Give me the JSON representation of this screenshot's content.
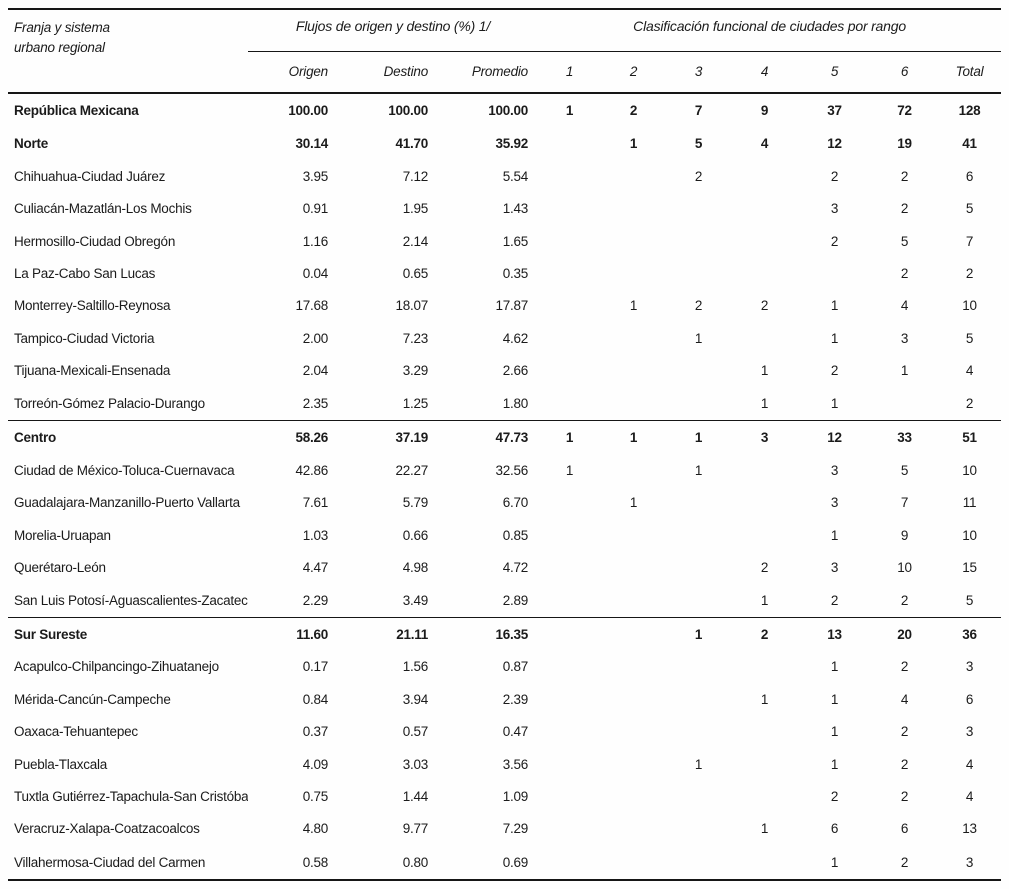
{
  "table": {
    "col1_header_line1": "Franja y sistema",
    "col1_header_line2": "urbano regional",
    "group1_header": "Flujos de origen y destino (%) 1/",
    "group2_header": "Clasificación funcional de ciudades por rango",
    "subheaders": [
      "Origen",
      "Destino",
      "Promedio",
      "1",
      "2",
      "3",
      "4",
      "5",
      "6",
      "Total"
    ],
    "rows": [
      {
        "name": "República Mexicana",
        "bold": true,
        "rule_above": false,
        "values": [
          "100.00",
          "100.00",
          "100.00",
          "1",
          "2",
          "7",
          "9",
          "37",
          "72",
          "128"
        ]
      },
      {
        "name": "Norte",
        "bold": true,
        "rule_above": false,
        "values": [
          "30.14",
          "41.70",
          "35.92",
          "",
          "1",
          "5",
          "4",
          "12",
          "19",
          "41"
        ]
      },
      {
        "name": "Chihuahua-Ciudad Juárez",
        "bold": false,
        "rule_above": false,
        "values": [
          "3.95",
          "7.12",
          "5.54",
          "",
          "",
          "2",
          "",
          "2",
          "2",
          "6"
        ]
      },
      {
        "name": "Culiacán-Mazatlán-Los Mochis",
        "bold": false,
        "rule_above": false,
        "values": [
          "0.91",
          "1.95",
          "1.43",
          "",
          "",
          "",
          "",
          "3",
          "2",
          "5"
        ]
      },
      {
        "name": "Hermosillo-Ciudad Obregón",
        "bold": false,
        "rule_above": false,
        "values": [
          "1.16",
          "2.14",
          "1.65",
          "",
          "",
          "",
          "",
          "2",
          "5",
          "7"
        ]
      },
      {
        "name": "La Paz-Cabo San Lucas",
        "bold": false,
        "rule_above": false,
        "values": [
          "0.04",
          "0.65",
          "0.35",
          "",
          "",
          "",
          "",
          "",
          "2",
          "2"
        ]
      },
      {
        "name": "Monterrey-Saltillo-Reynosa",
        "bold": false,
        "rule_above": false,
        "values": [
          "17.68",
          "18.07",
          "17.87",
          "",
          "1",
          "2",
          "2",
          "1",
          "4",
          "10"
        ]
      },
      {
        "name": "Tampico-Ciudad Victoria",
        "bold": false,
        "rule_above": false,
        "values": [
          "2.00",
          "7.23",
          "4.62",
          "",
          "",
          "1",
          "",
          "1",
          "3",
          "5"
        ]
      },
      {
        "name": "Tijuana-Mexicali-Ensenada",
        "bold": false,
        "rule_above": false,
        "values": [
          "2.04",
          "3.29",
          "2.66",
          "",
          "",
          "",
          "1",
          "2",
          "1",
          "4"
        ]
      },
      {
        "name": "Torreón-Gómez Palacio-Durango",
        "bold": false,
        "rule_above": false,
        "values": [
          "2.35",
          "1.25",
          "1.80",
          "",
          "",
          "",
          "1",
          "1",
          "",
          "2"
        ]
      },
      {
        "name": "Centro",
        "bold": true,
        "rule_above": true,
        "values": [
          "58.26",
          "37.19",
          "47.73",
          "1",
          "1",
          "1",
          "3",
          "12",
          "33",
          "51"
        ]
      },
      {
        "name": "Ciudad de México-Toluca-Cuernavaca",
        "bold": false,
        "rule_above": false,
        "values": [
          "42.86",
          "22.27",
          "32.56",
          "1",
          "",
          "1",
          "",
          "3",
          "5",
          "10"
        ]
      },
      {
        "name": "Guadalajara-Manzanillo-Puerto Vallarta",
        "bold": false,
        "rule_above": false,
        "values": [
          "7.61",
          "5.79",
          "6.70",
          "",
          "1",
          "",
          "",
          "3",
          "7",
          "11"
        ]
      },
      {
        "name": "Morelia-Uruapan",
        "bold": false,
        "rule_above": false,
        "values": [
          "1.03",
          "0.66",
          "0.85",
          "",
          "",
          "",
          "",
          "1",
          "9",
          "10"
        ]
      },
      {
        "name": "Querétaro-León",
        "bold": false,
        "rule_above": false,
        "values": [
          "4.47",
          "4.98",
          "4.72",
          "",
          "",
          "",
          "2",
          "3",
          "10",
          "15"
        ]
      },
      {
        "name": "San Luis Potosí-Aguascalientes-Zacatecas",
        "bold": false,
        "rule_above": false,
        "values": [
          "2.29",
          "3.49",
          "2.89",
          "",
          "",
          "",
          "1",
          "2",
          "2",
          "5"
        ]
      },
      {
        "name": "Sur Sureste",
        "bold": true,
        "rule_above": true,
        "values": [
          "11.60",
          "21.11",
          "16.35",
          "",
          "",
          "1",
          "2",
          "13",
          "20",
          "36"
        ]
      },
      {
        "name": "Acapulco-Chilpancingo-Zihuatanejo",
        "bold": false,
        "rule_above": false,
        "values": [
          "0.17",
          "1.56",
          "0.87",
          "",
          "",
          "",
          "",
          "1",
          "2",
          "3"
        ]
      },
      {
        "name": "Mérida-Cancún-Campeche",
        "bold": false,
        "rule_above": false,
        "values": [
          "0.84",
          "3.94",
          "2.39",
          "",
          "",
          "",
          "1",
          "1",
          "4",
          "6"
        ]
      },
      {
        "name": "Oaxaca-Tehuantepec",
        "bold": false,
        "rule_above": false,
        "values": [
          "0.37",
          "0.57",
          "0.47",
          "",
          "",
          "",
          "",
          "1",
          "2",
          "3"
        ]
      },
      {
        "name": "Puebla-Tlaxcala",
        "bold": false,
        "rule_above": false,
        "values": [
          "4.09",
          "3.03",
          "3.56",
          "",
          "",
          "1",
          "",
          "1",
          "2",
          "4"
        ]
      },
      {
        "name": "Tuxtla Gutiérrez-Tapachula-San Cristóbal",
        "bold": false,
        "rule_above": false,
        "values": [
          "0.75",
          "1.44",
          "1.09",
          "",
          "",
          "",
          "",
          "2",
          "2",
          "4"
        ]
      },
      {
        "name": "Veracruz-Xalapa-Coatzacoalcos",
        "bold": false,
        "rule_above": false,
        "values": [
          "4.80",
          "9.77",
          "7.29",
          "",
          "",
          "",
          "1",
          "6",
          "6",
          "13"
        ]
      },
      {
        "name": "Villahermosa-Ciudad del Carmen",
        "bold": false,
        "rule_above": false,
        "values": [
          "0.58",
          "0.80",
          "0.69",
          "",
          "",
          "",
          "",
          "1",
          "2",
          "3"
        ]
      }
    ]
  }
}
